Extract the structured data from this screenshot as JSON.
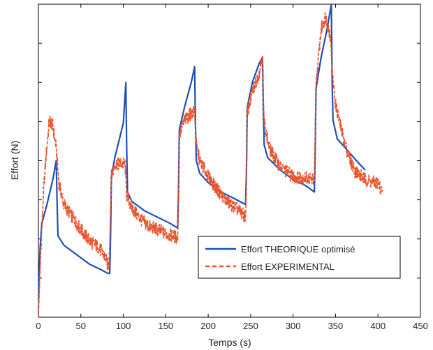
{
  "chart_data": {
    "type": "line",
    "title": "",
    "xlabel": "Temps (s)",
    "ylabel": "Effort (N)",
    "xlim": [
      0,
      450
    ],
    "xticks": [
      0,
      50,
      100,
      150,
      200,
      250,
      300,
      350,
      400,
      450
    ],
    "ylim": [
      0,
      10
    ],
    "yticks_labeled": false,
    "grid": false,
    "legend_position": "bottom-right",
    "series": [
      {
        "name": "Effort THEORIQUE optimisé",
        "color": "#1f4fb4",
        "style": "solid",
        "points": [
          [
            0,
            0.5
          ],
          [
            2,
            2.2
          ],
          [
            4,
            3.0
          ],
          [
            10,
            3.6
          ],
          [
            17,
            4.4
          ],
          [
            21,
            5.0
          ],
          [
            22,
            3.7
          ],
          [
            23,
            2.6
          ],
          [
            30,
            2.3
          ],
          [
            45,
            2.0
          ],
          [
            60,
            1.7
          ],
          [
            75,
            1.5
          ],
          [
            82,
            1.4
          ],
          [
            84,
            1.4
          ],
          [
            85,
            2.6
          ],
          [
            86,
            4.5
          ],
          [
            90,
            5.1
          ],
          [
            100,
            6.2
          ],
          [
            103,
            7.5
          ],
          [
            104,
            5.4
          ],
          [
            105,
            4.0
          ],
          [
            110,
            3.7
          ],
          [
            125,
            3.4
          ],
          [
            140,
            3.2
          ],
          [
            155,
            3.0
          ],
          [
            164,
            2.85
          ],
          [
            165,
            4.0
          ],
          [
            166,
            6.0
          ],
          [
            172,
            6.7
          ],
          [
            180,
            7.5
          ],
          [
            184,
            8.0
          ],
          [
            185,
            6.1
          ],
          [
            186,
            5.0
          ],
          [
            190,
            4.6
          ],
          [
            200,
            4.3
          ],
          [
            215,
            4.0
          ],
          [
            230,
            3.8
          ],
          [
            244,
            3.6
          ],
          [
            245,
            4.5
          ],
          [
            246,
            6.7
          ],
          [
            252,
            7.5
          ],
          [
            260,
            8.1
          ],
          [
            264,
            8.3
          ],
          [
            265,
            6.6
          ],
          [
            266,
            5.5
          ],
          [
            270,
            5.1
          ],
          [
            285,
            4.7
          ],
          [
            300,
            4.4
          ],
          [
            315,
            4.2
          ],
          [
            325,
            4.0
          ],
          [
            326,
            5.3
          ],
          [
            327,
            7.3
          ],
          [
            333,
            8.3
          ],
          [
            340,
            9.2
          ],
          [
            345,
            10.0
          ],
          [
            346,
            7.5
          ],
          [
            347,
            6.3
          ],
          [
            352,
            5.7
          ],
          [
            365,
            5.3
          ],
          [
            378,
            4.9
          ],
          [
            385,
            4.7
          ]
        ]
      },
      {
        "name": "Effort EXPERIMENTAL",
        "color": "#e8552e",
        "style": "dashed",
        "points": [
          [
            0,
            0
          ],
          [
            3,
            2.2
          ],
          [
            6,
            4.0
          ],
          [
            10,
            5.5
          ],
          [
            13,
            6.3
          ],
          [
            17,
            6.1
          ],
          [
            21,
            5.4
          ],
          [
            24,
            4.3
          ],
          [
            30,
            3.6
          ],
          [
            40,
            3.2
          ],
          [
            50,
            2.8
          ],
          [
            60,
            2.45
          ],
          [
            70,
            2.25
          ],
          [
            78,
            1.95
          ],
          [
            82,
            1.65
          ],
          [
            83,
            1.7
          ],
          [
            84,
            2.4
          ],
          [
            86,
            4.5
          ],
          [
            90,
            4.9
          ],
          [
            96,
            4.9
          ],
          [
            102,
            4.9
          ],
          [
            103,
            4.4
          ],
          [
            104,
            3.9
          ],
          [
            110,
            3.5
          ],
          [
            120,
            3.15
          ],
          [
            130,
            2.9
          ],
          [
            140,
            2.8
          ],
          [
            152,
            2.65
          ],
          [
            160,
            2.6
          ],
          [
            164,
            2.5
          ],
          [
            165,
            3.5
          ],
          [
            166,
            5.8
          ],
          [
            172,
            6.3
          ],
          [
            180,
            6.5
          ],
          [
            184,
            6.6
          ],
          [
            185,
            6.0
          ],
          [
            186,
            5.5
          ],
          [
            190,
            5.0
          ],
          [
            200,
            4.5
          ],
          [
            210,
            4.1
          ],
          [
            220,
            3.75
          ],
          [
            232,
            3.5
          ],
          [
            240,
            3.3
          ],
          [
            244,
            3.2
          ],
          [
            245,
            4.2
          ],
          [
            246,
            6.5
          ],
          [
            252,
            7.2
          ],
          [
            260,
            7.8
          ],
          [
            264,
            8.4
          ],
          [
            265,
            7.0
          ],
          [
            266,
            6.2
          ],
          [
            272,
            5.4
          ],
          [
            285,
            4.8
          ],
          [
            300,
            4.5
          ],
          [
            315,
            4.45
          ],
          [
            325,
            4.4
          ],
          [
            326,
            5.8
          ],
          [
            327,
            7.4
          ],
          [
            333,
            9.2
          ],
          [
            338,
            9.6
          ],
          [
            344,
            9.0
          ],
          [
            346,
            7.8
          ],
          [
            350,
            6.8
          ],
          [
            360,
            5.6
          ],
          [
            372,
            4.7
          ],
          [
            385,
            4.4
          ],
          [
            395,
            4.3
          ],
          [
            400,
            4.3
          ],
          [
            405,
            4.0
          ]
        ]
      }
    ]
  }
}
